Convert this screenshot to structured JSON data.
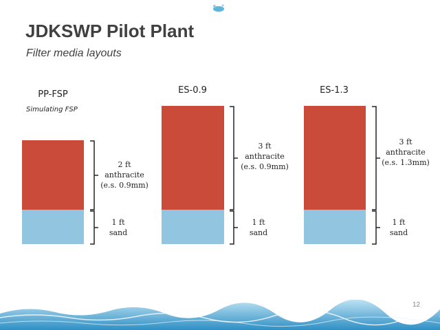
{
  "header": {
    "title": "JDKSWP Pilot Plant",
    "subtitle": "Filter media layouts"
  },
  "columns": [
    {
      "name": "PP-FSP",
      "note": "Simulating FSP",
      "anthracite": [
        "2 ft",
        "anthracite",
        "(e.s. 0.9mm)"
      ],
      "sand": [
        "1 ft",
        "sand"
      ]
    },
    {
      "name": "ES-0.9",
      "note": "",
      "anthracite": [
        "3 ft",
        "anthracite",
        "(e.s. 0.9mm)"
      ],
      "sand": [
        "1 ft",
        "sand"
      ]
    },
    {
      "name": "ES-1.3",
      "note": "",
      "anthracite": [
        "3 ft",
        "anthracite",
        "(e.s. 1.3mm)"
      ],
      "sand": [
        "1 ft",
        "sand"
      ]
    }
  ],
  "colors": {
    "anthracite": "#cb4b3a",
    "sand": "#92c6e0"
  },
  "slide_number": "12"
}
